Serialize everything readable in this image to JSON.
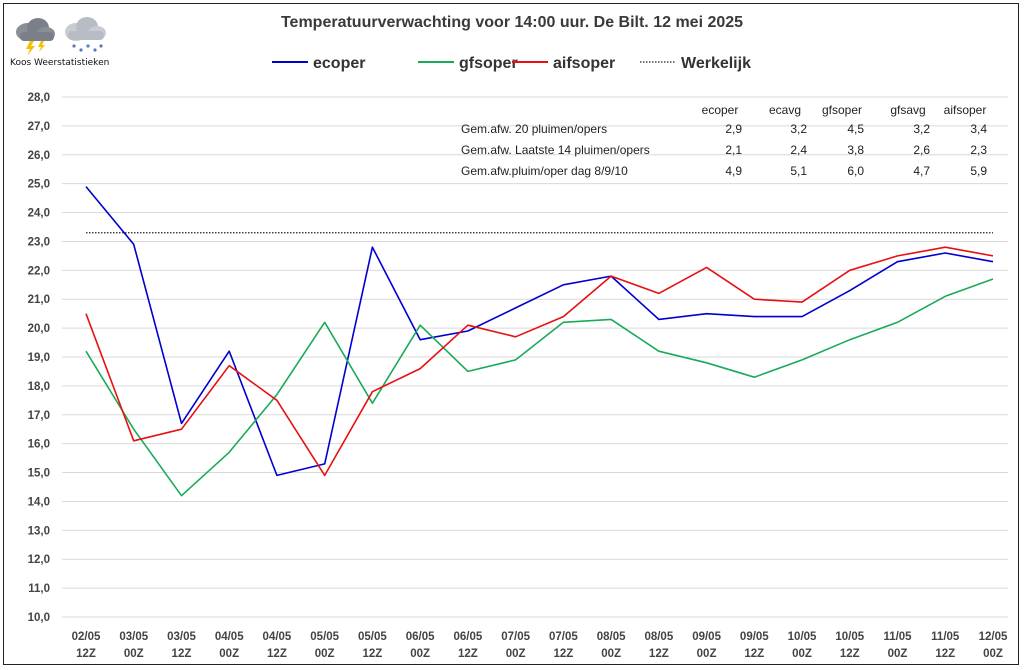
{
  "page": {
    "title": "Temperatuurverwachting voor 14:00 uur. De Bilt. 12 mei 2025",
    "logo_text": "Koos Weerstatistieken",
    "logo_icons": [
      "thunderstorm-cloud-icon",
      "snow-cloud-icon"
    ]
  },
  "stats_table": {
    "columns": [
      "ecoper",
      "ecavg",
      "gfsoper",
      "gfsavg",
      "aifsoper"
    ],
    "rows": [
      {
        "label": "Gem.afw. 20 pluimen/opers",
        "values": [
          "2,9",
          "3,2",
          "4,5",
          "3,2",
          "3,4"
        ]
      },
      {
        "label": "Gem.afw. Laatste 14 pluimen/opers",
        "values": [
          "2,1",
          "2,4",
          "3,8",
          "2,6",
          "2,3"
        ]
      },
      {
        "label": "Gem.afw.pluim/oper dag 8/9/10",
        "values": [
          "4,9",
          "5,1",
          "6,0",
          "4,7",
          "5,9"
        ]
      }
    ]
  },
  "chart_data": {
    "type": "line",
    "title": "Temperatuurverwachting voor 14:00 uur. De Bilt. 12 mei 2025",
    "xlabel": "",
    "ylabel": "",
    "categories": [
      [
        "02/05",
        "12Z"
      ],
      [
        "03/05",
        "00Z"
      ],
      [
        "03/05",
        "12Z"
      ],
      [
        "04/05",
        "00Z"
      ],
      [
        "04/05",
        "12Z"
      ],
      [
        "05/05",
        "00Z"
      ],
      [
        "05/05",
        "12Z"
      ],
      [
        "06/05",
        "00Z"
      ],
      [
        "06/05",
        "12Z"
      ],
      [
        "07/05",
        "00Z"
      ],
      [
        "07/05",
        "12Z"
      ],
      [
        "08/05",
        "00Z"
      ],
      [
        "08/05",
        "12Z"
      ],
      [
        "09/05",
        "00Z"
      ],
      [
        "09/05",
        "12Z"
      ],
      [
        "10/05",
        "00Z"
      ],
      [
        "10/05",
        "12Z"
      ],
      [
        "11/05",
        "00Z"
      ],
      [
        "11/05",
        "12Z"
      ],
      [
        "12/05",
        "00Z"
      ]
    ],
    "ylim": [
      10,
      28
    ],
    "ytick_step": 1,
    "ytick_labels": [
      "10,0",
      "11,0",
      "12,0",
      "13,0",
      "14,0",
      "15,0",
      "16,0",
      "17,0",
      "18,0",
      "19,0",
      "20,0",
      "21,0",
      "22,0",
      "23,0",
      "24,0",
      "25,0",
      "26,0",
      "27,0",
      "28,0"
    ],
    "grid": true,
    "legend_position": "top",
    "series": [
      {
        "name": "ecoper",
        "color": "#0000d0",
        "style": "solid",
        "values": [
          24.9,
          22.9,
          16.7,
          19.2,
          14.9,
          15.3,
          22.8,
          19.6,
          19.9,
          20.7,
          21.5,
          21.8,
          20.3,
          20.5,
          20.4,
          20.4,
          21.3,
          22.3,
          22.6,
          22.3
        ]
      },
      {
        "name": "gfsoper",
        "color": "#1aaa5a",
        "style": "solid",
        "values": [
          19.2,
          16.5,
          14.2,
          15.7,
          17.7,
          20.2,
          17.4,
          20.1,
          18.5,
          18.9,
          20.2,
          20.3,
          19.2,
          18.8,
          18.3,
          18.9,
          19.6,
          20.2,
          21.1,
          21.7
        ]
      },
      {
        "name": "aifsoper",
        "color": "#e81010",
        "style": "solid",
        "values": [
          20.5,
          16.1,
          16.5,
          18.7,
          17.5,
          14.9,
          17.8,
          18.6,
          20.1,
          19.7,
          20.4,
          21.8,
          21.2,
          22.1,
          21.0,
          20.9,
          22.0,
          22.5,
          22.8,
          22.5
        ]
      },
      {
        "name": "Werkelijk",
        "color": "#222222",
        "style": "dotted",
        "constant": 23.3
      }
    ]
  }
}
